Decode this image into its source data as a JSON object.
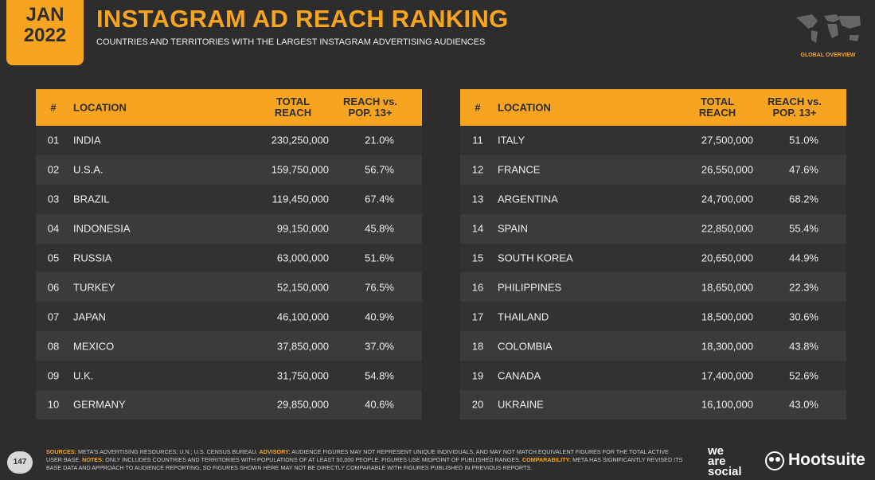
{
  "header": {
    "month": "JAN",
    "year": "2022",
    "title": "INSTAGRAM AD REACH RANKING",
    "subtitle": "COUNTRIES AND TERRITORIES WITH THE LARGEST INSTAGRAM ADVERTISING AUDIENCES",
    "badge": "GLOBAL OVERVIEW"
  },
  "tables": [
    {
      "columns": [
        "#",
        "LOCATION",
        "TOTAL REACH",
        "REACH vs. POP. 13+"
      ],
      "rows": [
        [
          "01",
          "INDIA",
          "230,250,000",
          "21.0%"
        ],
        [
          "02",
          "U.S.A.",
          "159,750,000",
          "56.7%"
        ],
        [
          "03",
          "BRAZIL",
          "119,450,000",
          "67.4%"
        ],
        [
          "04",
          "INDONESIA",
          "99,150,000",
          "45.8%"
        ],
        [
          "05",
          "RUSSIA",
          "63,000,000",
          "51.6%"
        ],
        [
          "06",
          "TURKEY",
          "52,150,000",
          "76.5%"
        ],
        [
          "07",
          "JAPAN",
          "46,100,000",
          "40.9%"
        ],
        [
          "08",
          "MEXICO",
          "37,850,000",
          "37.0%"
        ],
        [
          "09",
          "U.K.",
          "31,750,000",
          "54.8%"
        ],
        [
          "10",
          "GERMANY",
          "29,850,000",
          "40.6%"
        ]
      ]
    },
    {
      "columns": [
        "#",
        "LOCATION",
        "TOTAL REACH",
        "REACH vs. POP. 13+"
      ],
      "rows": [
        [
          "11",
          "ITALY",
          "27,500,000",
          "51.0%"
        ],
        [
          "12",
          "FRANCE",
          "26,550,000",
          "47.6%"
        ],
        [
          "13",
          "ARGENTINA",
          "24,700,000",
          "68.2%"
        ],
        [
          "14",
          "SPAIN",
          "22,850,000",
          "55.4%"
        ],
        [
          "15",
          "SOUTH KOREA",
          "20,650,000",
          "44.9%"
        ],
        [
          "16",
          "PHILIPPINES",
          "18,650,000",
          "22.3%"
        ],
        [
          "17",
          "THAILAND",
          "18,500,000",
          "30.6%"
        ],
        [
          "18",
          "COLOMBIA",
          "18,300,000",
          "43.8%"
        ],
        [
          "19",
          "CANADA",
          "17,400,000",
          "52.6%"
        ],
        [
          "20",
          "UKRAINE",
          "16,100,000",
          "43.0%"
        ]
      ]
    }
  ],
  "footer": {
    "page": "147",
    "notes": [
      {
        "label": "SOURCES:",
        "text": "META'S ADVERTISING RESOURCES; U.N.; U.S. CENSUS BUREAU."
      },
      {
        "label": "ADVISORY:",
        "text": "AUDIENCE FIGURES MAY NOT REPRESENT UNIQUE INDIVIDUALS, AND MAY NOT MATCH EQUIVALENT FIGURES FOR THE TOTAL ACTIVE USER BASE."
      },
      {
        "label": "NOTES:",
        "text": "ONLY INCLUDES COUNTRIES AND TERRITORIES WITH POPULATIONS OF AT LEAST 50,000 PEOPLE. FIGURES USE MIDPOINT OF PUBLISHED RANGES."
      },
      {
        "label": "COMPARABILITY:",
        "text": "META HAS SIGNIFICANTLY REVISED ITS BASE DATA AND APPROACH TO AUDIENCE REPORTING, SO FIGURES SHOWN HERE MAY NOT BE DIRECTLY COMPARABLE WITH FIGURES PUBLISHED IN PREVIOUS REPORTS."
      }
    ],
    "logo1": [
      "we",
      "are",
      "social"
    ],
    "logo2": "Hootsuite"
  }
}
